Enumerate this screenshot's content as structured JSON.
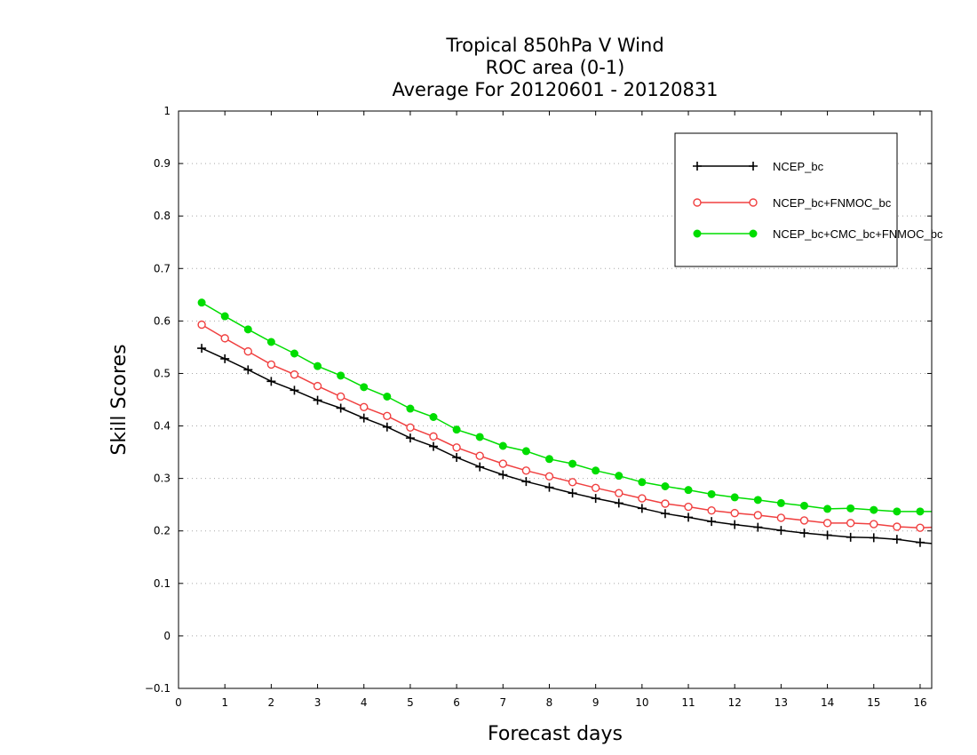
{
  "chart_data": {
    "type": "line",
    "title_lines": [
      "Tropical 850hPa V Wind",
      "ROC area (0-1)",
      "Average For 20120601 - 20120831"
    ],
    "xlabel": "Forecast days",
    "ylabel": "Skill Scores",
    "xlim": [
      0,
      16.25
    ],
    "ylim": [
      -0.1,
      1.0
    ],
    "xticks": [
      0,
      1,
      2,
      3,
      4,
      5,
      6,
      7,
      8,
      9,
      10,
      11,
      12,
      13,
      14,
      15,
      16
    ],
    "yticks": [
      -0.1,
      0,
      0.1,
      0.2,
      0.3,
      0.4,
      0.5,
      0.6,
      0.7,
      0.8,
      0.9,
      1
    ],
    "ytick_labels": [
      "−0.1",
      "0",
      "0.1",
      "0.2",
      "0.3",
      "0.4",
      "0.5",
      "0.6",
      "0.7",
      "0.8",
      "0.9",
      "1"
    ],
    "grid": "horizontal dotted",
    "legend_position": "top-right",
    "x": [
      0.5,
      1.0,
      1.5,
      2.0,
      2.5,
      3.0,
      3.5,
      4.0,
      4.5,
      5.0,
      5.5,
      6.0,
      6.5,
      7.0,
      7.5,
      8.0,
      8.5,
      9.0,
      9.5,
      10.0,
      10.5,
      11.0,
      11.5,
      12.0,
      12.5,
      13.0,
      13.5,
      14.0,
      14.5,
      15.0,
      15.5,
      16.0,
      16.25
    ],
    "series": [
      {
        "name": "NCEP_bc",
        "color": "#000000",
        "marker": "plus",
        "values": [
          0.548,
          0.528,
          0.507,
          0.485,
          0.468,
          0.449,
          0.434,
          0.415,
          0.398,
          0.377,
          0.361,
          0.34,
          0.322,
          0.307,
          0.294,
          0.283,
          0.272,
          0.262,
          0.253,
          0.243,
          0.233,
          0.226,
          0.218,
          0.212,
          0.207,
          0.201,
          0.196,
          0.192,
          0.188,
          0.187,
          0.184,
          0.178,
          0.176
        ]
      },
      {
        "name": "NCEP_bc+FNMOC_bc",
        "color": "#f04040",
        "marker": "open-circle",
        "values": [
          0.593,
          0.567,
          0.542,
          0.517,
          0.498,
          0.476,
          0.456,
          0.436,
          0.419,
          0.397,
          0.38,
          0.359,
          0.343,
          0.328,
          0.315,
          0.304,
          0.293,
          0.282,
          0.272,
          0.262,
          0.252,
          0.246,
          0.239,
          0.234,
          0.23,
          0.225,
          0.22,
          0.215,
          0.215,
          0.213,
          0.208,
          0.206,
          0.207
        ]
      },
      {
        "name": "NCEP_bc+CMC_bc+FNMOC_bc",
        "color": "#00dd00",
        "marker": "filled-circle",
        "values": [
          0.635,
          0.609,
          0.584,
          0.56,
          0.538,
          0.514,
          0.496,
          0.474,
          0.456,
          0.433,
          0.417,
          0.393,
          0.379,
          0.362,
          0.352,
          0.337,
          0.328,
          0.315,
          0.305,
          0.293,
          0.285,
          0.278,
          0.27,
          0.264,
          0.259,
          0.253,
          0.248,
          0.242,
          0.243,
          0.24,
          0.237,
          0.237,
          0.237
        ]
      }
    ]
  }
}
